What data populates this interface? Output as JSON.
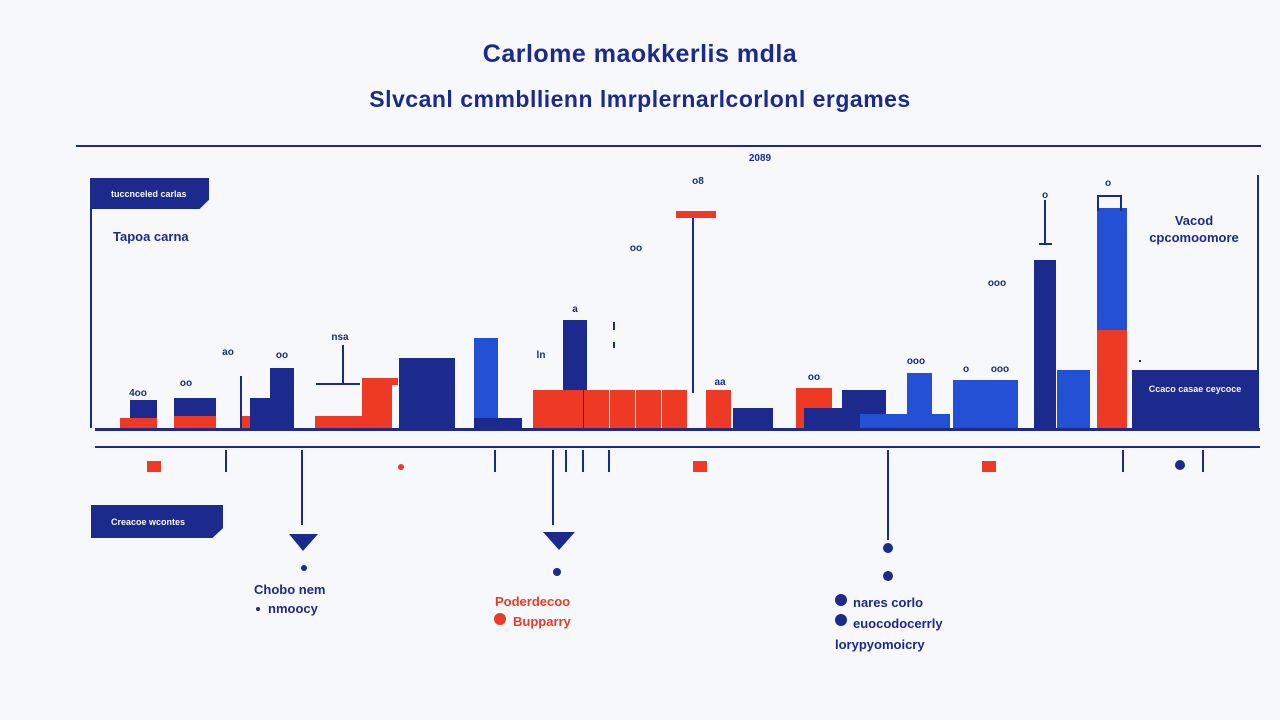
{
  "title": "Carlome maokkerlis mdla",
  "subtitle": "Slvcanl cmmbllienn lmrplernarlcorlonl ergames",
  "top_tag": "tuccnceled carlas",
  "left_label": "Tapoa carna",
  "right_label": {
    "line1": "Vacod",
    "line2": "cpcomoomore"
  },
  "bottom_tag": "Creacoe wcontes",
  "bar_inner_label": "Ccaco casae ceycoce",
  "legend": {
    "left": {
      "line1": "Chobo nem",
      "line2": "nmoocy"
    },
    "middle": {
      "line1": "Poderdecoo",
      "line2": "Bupparry"
    },
    "right": {
      "line1": "nares corlo",
      "line2": "euocodocerrly",
      "line3": "lorypyomoicry"
    }
  },
  "colors": {
    "navy": "#1b2a8c",
    "blue": "#2350d4",
    "red": "#ee3a24",
    "background": "#f7f8fb"
  },
  "chart_data": {
    "type": "bar",
    "title": "Carlome maokkerlis mdla",
    "subtitle": "Slvcanl cmmbllienn lmrplernarlcorlonl ergames",
    "series": [
      {
        "name": "navy",
        "color": "#1b2a8c"
      },
      {
        "name": "blue",
        "color": "#2350d4"
      },
      {
        "name": "red",
        "color": "#ee3a24"
      }
    ],
    "value_labels": [
      "2089",
      "oo",
      "o",
      "ooo",
      "o8",
      "ao",
      "oo",
      "nsa",
      "ln",
      "a",
      "aa",
      "oo",
      "ooo",
      "o",
      "ooo",
      "o",
      "4oo",
      "oo"
    ],
    "bars": [
      {
        "series": "navy",
        "value": 28
      },
      {
        "series": "red",
        "value": 10
      },
      {
        "series": "navy",
        "value": 30
      },
      {
        "series": "red",
        "value": 12
      },
      {
        "series": "red",
        "value": 12
      },
      {
        "series": "navy",
        "value": 60
      },
      {
        "series": "navy",
        "value": 30
      },
      {
        "series": "red",
        "value": 12
      },
      {
        "series": "red",
        "value": 50
      },
      {
        "series": "navy",
        "value": 70
      },
      {
        "series": "blue",
        "value": 90
      },
      {
        "series": "red",
        "value": 10
      },
      {
        "series": "navy",
        "value": 10
      },
      {
        "series": "navy",
        "value": 108
      },
      {
        "series": "red",
        "value": 38
      },
      {
        "series": "red",
        "value": 38
      },
      {
        "series": "red",
        "value": 38
      },
      {
        "series": "red",
        "value": 38
      },
      {
        "series": "red",
        "value": 38
      },
      {
        "series": "red",
        "value": 38
      },
      {
        "series": "red",
        "value": 38
      },
      {
        "series": "navy",
        "value": 20
      },
      {
        "series": "red",
        "value": 40
      },
      {
        "series": "navy",
        "value": 38
      },
      {
        "series": "navy",
        "value": 20
      },
      {
        "series": "blue",
        "value": 55
      },
      {
        "series": "blue",
        "value": 14
      },
      {
        "series": "blue",
        "value": 48
      },
      {
        "series": "blue",
        "value": 48
      },
      {
        "series": "navy",
        "value": 168
      },
      {
        "series": "blue",
        "value": 58
      },
      {
        "series": "blue",
        "value": 220
      },
      {
        "series": "red",
        "value": 98
      },
      {
        "series": "navy",
        "value": 58
      }
    ]
  }
}
